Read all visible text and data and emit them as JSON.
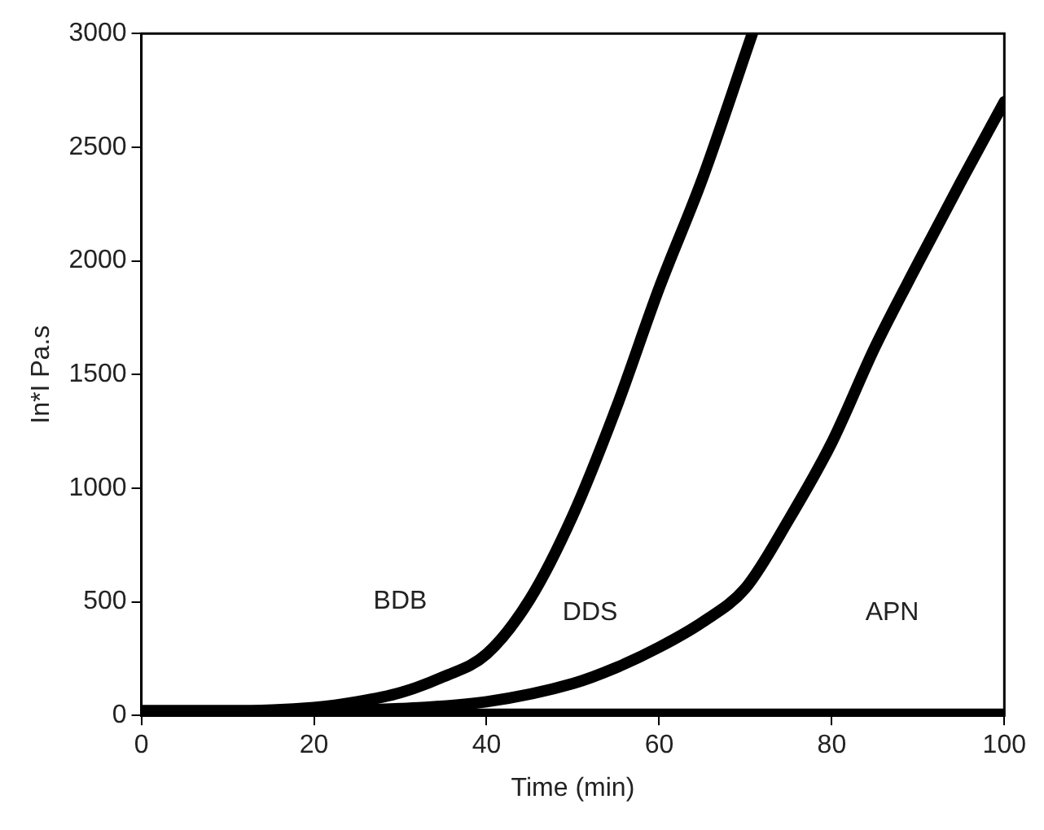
{
  "chart_data": {
    "type": "line",
    "xlabel": "Time (min)",
    "ylabel": "In*I Pa.s",
    "xlim": [
      0,
      100
    ],
    "ylim": [
      0,
      3000
    ],
    "xticks": [
      0,
      20,
      40,
      60,
      80,
      100
    ],
    "yticks": [
      0,
      500,
      1000,
      1500,
      2000,
      2500,
      3000
    ],
    "grid": false,
    "legend": false,
    "marker": "none",
    "line_style": "solid",
    "series": [
      {
        "color": "#000000",
        "x": [
          0,
          10,
          20,
          25,
          30,
          35,
          40,
          45,
          50,
          55,
          60,
          65,
          70.8
        ],
        "values": [
          20,
          20,
          35,
          60,
          100,
          170,
          270,
          510,
          880,
          1350,
          1880,
          2360,
          3000
        ]
      },
      {
        "color": "#000000",
        "x": [
          0,
          20,
          30,
          40,
          50,
          55,
          60,
          65,
          70,
          75,
          80,
          85,
          90,
          95,
          100
        ],
        "values": [
          20,
          20,
          30,
          60,
          140,
          210,
          300,
          410,
          560,
          860,
          1200,
          1620,
          1990,
          2350,
          2700
        ]
      },
      {
        "color": "#000000",
        "x": [
          0,
          50,
          100
        ],
        "values": [
          5,
          5,
          5
        ]
      }
    ],
    "annotations": [
      "BDB",
      "DDS",
      "APN"
    ]
  }
}
